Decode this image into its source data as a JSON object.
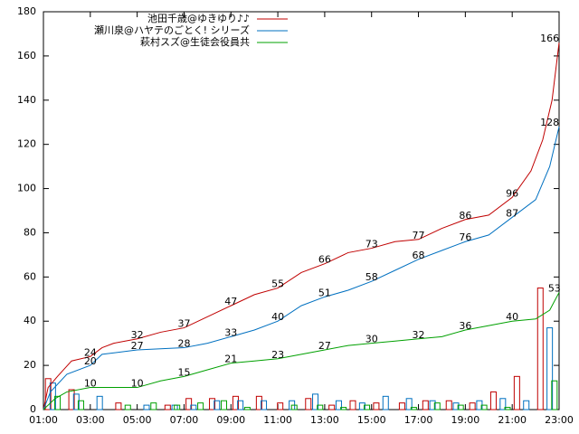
{
  "chart_data": {
    "type": "line",
    "xlim": [
      1,
      23
    ],
    "ylim": [
      0,
      180
    ],
    "xticks": [
      {
        "value": 1,
        "label": "01:00"
      },
      {
        "value": 3,
        "label": "03:00"
      },
      {
        "value": 5,
        "label": "05:00"
      },
      {
        "value": 7,
        "label": "07:00"
      },
      {
        "value": 9,
        "label": "09:00"
      },
      {
        "value": 11,
        "label": "11:00"
      },
      {
        "value": 13,
        "label": "13:00"
      },
      {
        "value": 15,
        "label": "15:00"
      },
      {
        "value": 17,
        "label": "17:00"
      },
      {
        "value": 19,
        "label": "19:00"
      },
      {
        "value": 21,
        "label": "21:00"
      },
      {
        "value": 23,
        "label": "23:00"
      }
    ],
    "yticks": [
      0,
      20,
      40,
      60,
      80,
      100,
      120,
      140,
      160,
      180
    ],
    "series": [
      {
        "name": "池田千歳@ゆきゆり♪♪",
        "color": "#c00000",
        "x": [
          1,
          1.2,
          1.6,
          2.2,
          3,
          3.5,
          4,
          5,
          6,
          7,
          8,
          9,
          10,
          11,
          12,
          13,
          14,
          15,
          16,
          17,
          18,
          19,
          20,
          21,
          21.8,
          22.3,
          22.7,
          23
        ],
        "values": [
          0,
          10,
          15,
          22,
          24,
          28,
          30,
          32,
          35,
          37,
          42,
          47,
          52,
          55,
          62,
          66,
          71,
          73,
          76,
          77,
          82,
          86,
          88,
          96,
          108,
          122,
          140,
          166
        ],
        "label_x": [
          3,
          5,
          7,
          9,
          11,
          13,
          15,
          17,
          19,
          21,
          22.6
        ],
        "label_values": [
          24,
          32,
          37,
          47,
          55,
          66,
          73,
          77,
          86,
          96,
          166
        ],
        "bar_x": [
          1.2,
          2.2,
          4.2,
          6.3,
          7.2,
          8.2,
          9.2,
          10.2,
          11.1,
          12.3,
          13.3,
          14.2,
          15.2,
          16.3,
          17.3,
          18.3,
          19.3,
          20.2,
          21.2,
          22.2
        ],
        "bar_values": [
          14,
          9,
          3,
          2,
          5,
          5,
          6,
          6,
          3,
          5,
          2,
          4,
          3,
          3,
          4,
          4,
          3,
          8,
          15,
          55
        ]
      },
      {
        "name": "瀬川泉@ハヤテのごとく! シリーズ",
        "color": "#0070c0",
        "x": [
          1,
          1.3,
          2,
          3,
          3.5,
          5,
          7,
          8,
          9,
          10,
          11,
          12,
          13,
          14,
          15,
          16,
          17,
          18,
          19,
          20,
          21,
          22,
          22.6,
          23
        ],
        "values": [
          0,
          8,
          16,
          20,
          25,
          27,
          28,
          30,
          33,
          36,
          40,
          47,
          51,
          54,
          58,
          63,
          68,
          72,
          76,
          79,
          87,
          95,
          110,
          128
        ],
        "label_x": [
          3,
          5,
          7,
          9,
          11,
          13,
          15,
          17,
          19,
          21,
          22.6
        ],
        "label_values": [
          20,
          27,
          28,
          33,
          40,
          51,
          58,
          68,
          76,
          87,
          128
        ],
        "bar_x": [
          1.4,
          2.4,
          3.4,
          5.4,
          6.6,
          7.4,
          8.4,
          9.4,
          10.4,
          11.6,
          12.6,
          13.6,
          14.6,
          15.6,
          16.6,
          17.6,
          18.6,
          19.6,
          20.6,
          21.6,
          22.6
        ],
        "bar_values": [
          12,
          7,
          6,
          2,
          2,
          2,
          4,
          4,
          4,
          4,
          7,
          4,
          3,
          6,
          5,
          4,
          3,
          4,
          5,
          4,
          37
        ]
      },
      {
        "name": "萩村スズ@生徒会役員共",
        "color": "#00a000",
        "x": [
          1,
          1.5,
          2,
          3,
          5,
          6,
          7,
          8,
          9,
          10,
          11,
          12,
          13,
          14,
          15,
          16,
          17,
          18,
          19,
          20,
          21,
          22,
          22.6,
          23
        ],
        "values": [
          0,
          5,
          8,
          10,
          10,
          13,
          15,
          18,
          21,
          22,
          23,
          25,
          27,
          29,
          30,
          31,
          32,
          33,
          36,
          38,
          40,
          41,
          45,
          53
        ],
        "label_x": [
          3,
          5,
          7,
          9,
          11,
          13,
          15,
          17,
          19,
          21,
          22.8
        ],
        "label_values": [
          10,
          10,
          15,
          21,
          23,
          27,
          30,
          32,
          36,
          40,
          53
        ],
        "bar_x": [
          1.6,
          2.6,
          4.6,
          5.7,
          6.7,
          7.7,
          8.7,
          9.7,
          11.7,
          12.8,
          13.8,
          14.8,
          16.8,
          17.8,
          18.8,
          19.8,
          20.8,
          22.8
        ],
        "bar_values": [
          6,
          4,
          2,
          3,
          2,
          3,
          4,
          1,
          2,
          2,
          1,
          2,
          1,
          3,
          2,
          2,
          1,
          13
        ]
      }
    ]
  }
}
